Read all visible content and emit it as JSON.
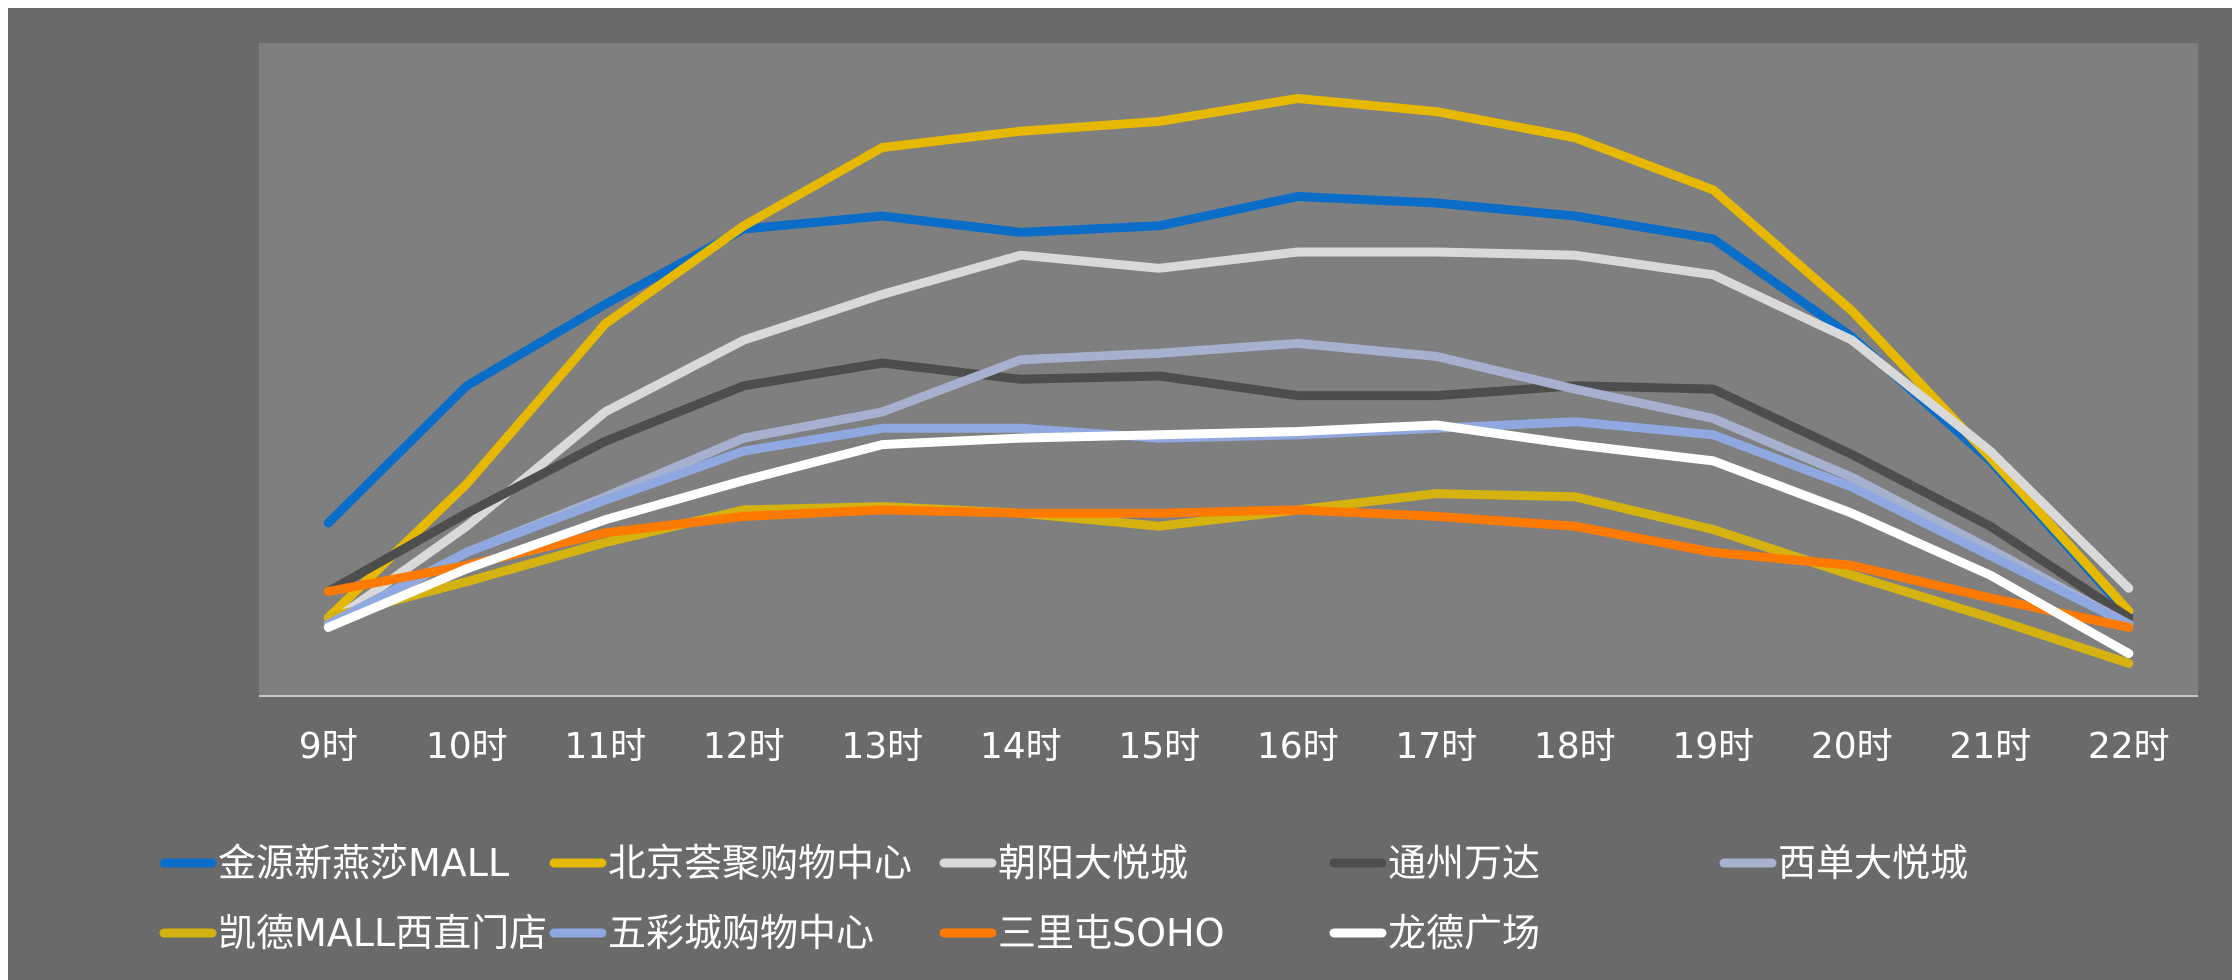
{
  "chart_data": {
    "type": "line",
    "title": "",
    "xlabel": "",
    "ylabel": "",
    "grid": false,
    "legend": "bottom",
    "ylim": [
      0,
      100
    ],
    "categories": [
      "9时",
      "10时",
      "11时",
      "12时",
      "13时",
      "14时",
      "15时",
      "16时",
      "17时",
      "18时",
      "19时",
      "20时",
      "21时",
      "22时"
    ],
    "series": [
      {
        "name": "金源新燕莎MALL",
        "color": "#0a6ec8",
        "values": [
          26.5,
          47.5,
          60,
          71.5,
          73.5,
          71,
          72,
          76.5,
          75.5,
          73.5,
          70,
          55,
          36,
          12.5
        ]
      },
      {
        "name": "北京荟聚购物中心",
        "color": "#e6b800",
        "values": [
          12,
          32.5,
          57,
          72,
          84,
          86.5,
          88,
          91.5,
          89.5,
          85.5,
          77.5,
          59,
          36.5,
          13
        ]
      },
      {
        "name": "朝阳大悦城",
        "color": "#d9d9d9",
        "values": [
          11,
          26,
          43.5,
          54.5,
          61.5,
          67.5,
          65.5,
          68,
          68,
          67.5,
          64.5,
          54.5,
          37.5,
          16.5
        ]
      },
      {
        "name": "通州万达",
        "color": "#4d4d4d",
        "values": [
          16,
          28,
          39,
          47.5,
          51,
          48.5,
          49,
          46,
          46,
          47.5,
          47,
          37,
          26,
          12
        ]
      },
      {
        "name": "西单大悦城",
        "color": "#a5b1cf",
        "values": [
          10.5,
          22,
          30.5,
          39.5,
          43.5,
          51.5,
          52.5,
          54,
          52,
          47,
          42.5,
          33.5,
          22.5,
          11
        ]
      },
      {
        "name": "凯德MALL西直门店",
        "color": "#d4b20f",
        "values": [
          12,
          17.5,
          23.5,
          28.5,
          29,
          28,
          26,
          28.5,
          31,
          30.5,
          25.5,
          18.5,
          12,
          5
        ]
      },
      {
        "name": "五彩城购物中心",
        "color": "#8fa9e0",
        "values": [
          11,
          22,
          30,
          37.5,
          41,
          41,
          39.5,
          40,
          41,
          42,
          40,
          32,
          21.5,
          11
        ]
      },
      {
        "name": "三里屯SOHO",
        "color": "#ff7a00",
        "values": [
          16,
          20,
          25,
          27.5,
          28.5,
          28,
          28,
          28.5,
          27.5,
          26,
          22,
          20,
          15,
          10.5
        ]
      },
      {
        "name": "龙德广场",
        "color": "#ffffff",
        "values": [
          10.5,
          19.5,
          27,
          33,
          38.5,
          39.5,
          40,
          40.5,
          41.5,
          38.5,
          36,
          28,
          18.5,
          6.5
        ]
      }
    ]
  }
}
